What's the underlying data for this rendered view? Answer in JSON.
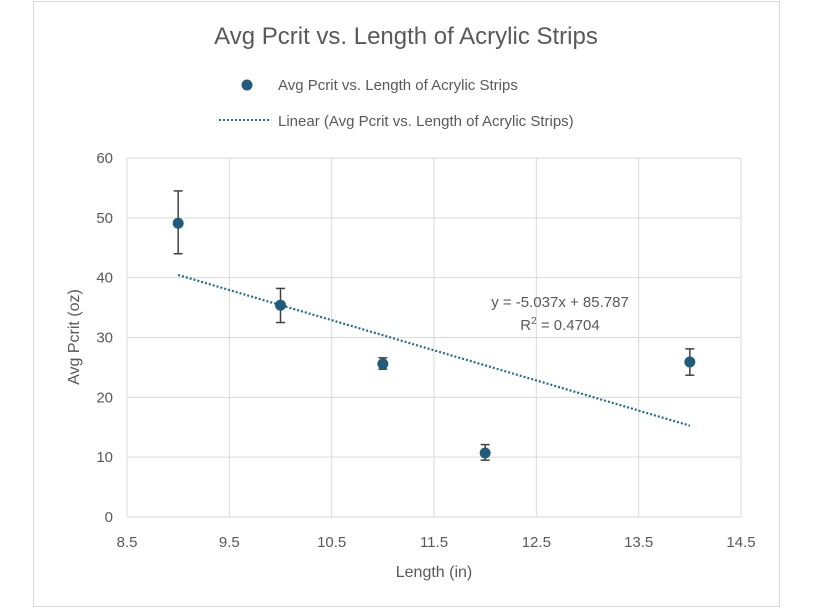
{
  "chart_data": {
    "type": "scatter",
    "title": "Avg Pcrit vs. Length of Acrylic Strips",
    "xlabel": "Length (in)",
    "ylabel": "Avg Pcrit (oz)",
    "xlim": [
      8.5,
      14.5
    ],
    "ylim": [
      0,
      60
    ],
    "x_ticks": [
      "8.5",
      "9.5",
      "10.5",
      "11.5",
      "12.5",
      "13.5",
      "14.5"
    ],
    "y_ticks": [
      "0",
      "10",
      "20",
      "30",
      "40",
      "50",
      "60"
    ],
    "grid": true,
    "legend_position": "top",
    "series": [
      {
        "name": "Avg Pcrit vs. Length of Acrylic Strips",
        "color": "#1f5b7a",
        "points": [
          {
            "x": 9,
            "y": 49.1,
            "err_low": 44.0,
            "err_high": 54.5
          },
          {
            "x": 10,
            "y": 35.4,
            "err_low": 32.5,
            "err_high": 38.2
          },
          {
            "x": 11,
            "y": 25.6,
            "err_low": 24.7,
            "err_high": 26.6
          },
          {
            "x": 12,
            "y": 10.7,
            "err_low": 9.5,
            "err_high": 12.1
          },
          {
            "x": 14,
            "y": 25.9,
            "err_low": 23.7,
            "err_high": 28.1
          }
        ]
      }
    ],
    "trendline": {
      "name": "Linear (Avg Pcrit vs. Length of Acrylic Strips)",
      "type": "linear",
      "slope": -5.037,
      "intercept": 85.787,
      "x_range": [
        9,
        14
      ],
      "color": "#1f6e8c",
      "equation": "y = -5.037x + 85.787",
      "r2_label": "R",
      "r2_exp": "2",
      "r2_value": " = 0.4704"
    }
  }
}
